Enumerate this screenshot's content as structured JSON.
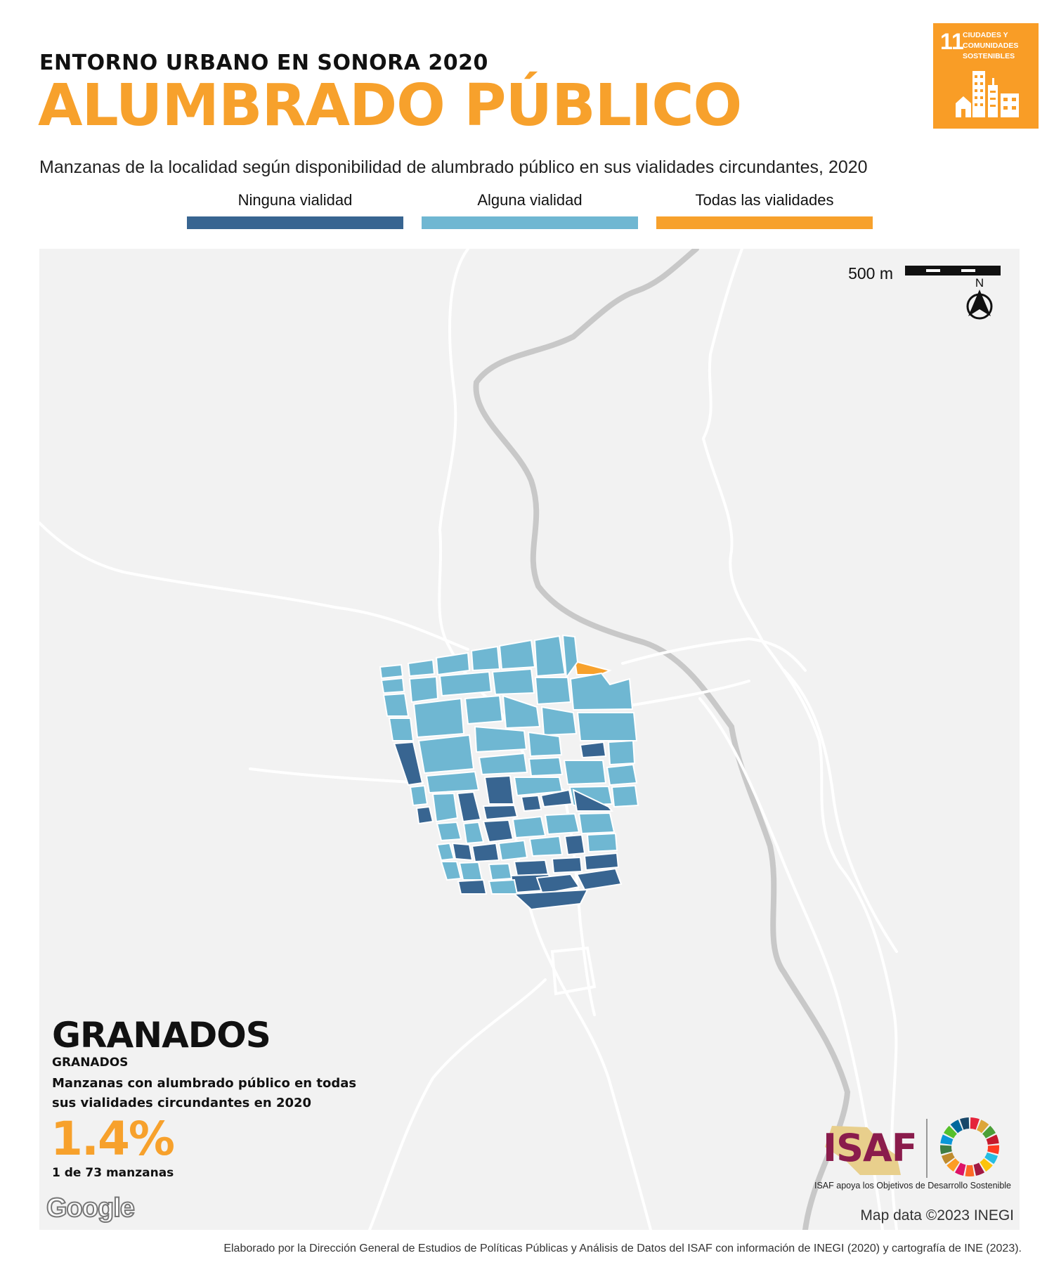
{
  "header": {
    "kicker": "ENTORNO URBANO EN SONORA 2020",
    "title": "ALUMBRADO PÚBLICO",
    "description": "Manzanas de la localidad según disponibilidad de alumbrado público en sus vialidades circundantes, 2020"
  },
  "sdg_badge": {
    "number": "11",
    "text": "CIUDADES Y COMUNIDADES SOSTENIBLES",
    "color": "#f99d26"
  },
  "legend": [
    {
      "label": "Ninguna vialidad",
      "color": "#386591"
    },
    {
      "label": "Alguna vialidad",
      "color": "#6fb7d2"
    },
    {
      "label": "Todas las vialidades",
      "color": "#f7a12c"
    }
  ],
  "map": {
    "scale_label": "500 m",
    "north_label": "N",
    "attribution": "Map data ©2023 INEGI",
    "google_logo": "Google",
    "background_color": "#f2f2f2",
    "road_color": "#ffffff",
    "highway_color": "#c8c8c8"
  },
  "locality": {
    "name": "GRANADOS",
    "subname": "GRANADOS",
    "stat_description": "Manzanas con alumbrado público en todas sus vialidades circundantes en 2020",
    "stat_value": "1.4%",
    "stat_count": "1 de 73 manzanas"
  },
  "logos": {
    "isaf_text": "ISAF",
    "isaf_tagline": "ISAF apoya los Objetivos de Desarrollo Sostenible"
  },
  "footer": "Elaborado por la Dirección General de Estudios de Políticas Públicas y Análisis de Datos del ISAF con información de INEGI (2020) y cartografía de INE (2023)."
}
